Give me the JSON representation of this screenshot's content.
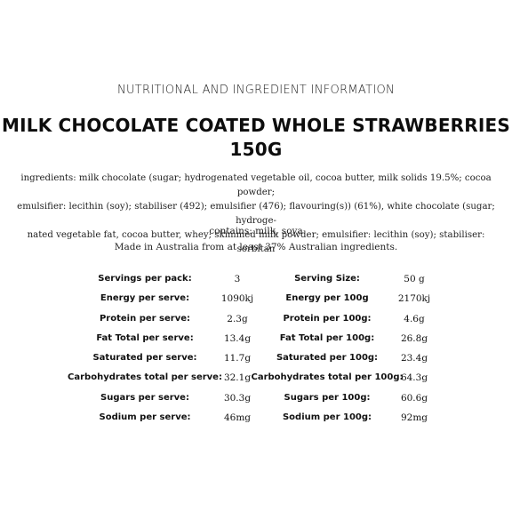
{
  "header": "NUTRITIONAL AND INGREDIENT INFORMATION",
  "product": {
    "title_line1": "MILK CHOCOLATE COATED WHOLE STRAWBERRIES",
    "title_line2": "150G"
  },
  "ingredients": {
    "line1": "ingredients: milk chocolate (sugar; hydrogenated vegetable oil, cocoa butter, milk solids 19.5%; cocoa powder;",
    "line2": "emulsifier: lecithin (soy); stabiliser (492); emulsifier (476); flavouring(s)) (61%), white chocolate (sugar; hydroge-",
    "line3": "nated vegetable fat, cocoa butter, whey; skimmed milk powder; emulsifier: lecithin (soy); stabiliser: sorbitan"
  },
  "contains": "contains: milk, soya",
  "made_in": "Made in Australia from at least 37% Australian ingredients.",
  "nutrition": {
    "rows": [
      {
        "label1": "Servings per pack:",
        "value1": "3",
        "label2": "Serving Size:",
        "value2": "50 g"
      },
      {
        "label1": "Energy per serve:",
        "value1": "1090kj",
        "label2": "Energy per 100g",
        "value2": "2170kj"
      },
      {
        "label1": "Protein per serve:",
        "value1": "2.3g",
        "label2": "Protein per 100g:",
        "value2": "4.6g"
      },
      {
        "label1": "Fat Total per serve:",
        "value1": "13.4g",
        "label2": "Fat Total per 100g:",
        "value2": "26.8g"
      },
      {
        "label1": "Saturated per serve:",
        "value1": "11.7g",
        "label2": "Saturated per 100g:",
        "value2": "23.4g"
      },
      {
        "label1": "Carbohydrates total per serve:",
        "value1": "32.1g",
        "label2": "Carbohydrates total per 100g:",
        "value2": "64.3g"
      },
      {
        "label1": "Sugars per serve:",
        "value1": "30.3g",
        "label2": "Sugars per 100g:",
        "value2": "60.6g"
      },
      {
        "label1": "Sodium per serve:",
        "value1": "46mg",
        "label2": "Sodium per 100g:",
        "value2": "92mg"
      }
    ]
  }
}
